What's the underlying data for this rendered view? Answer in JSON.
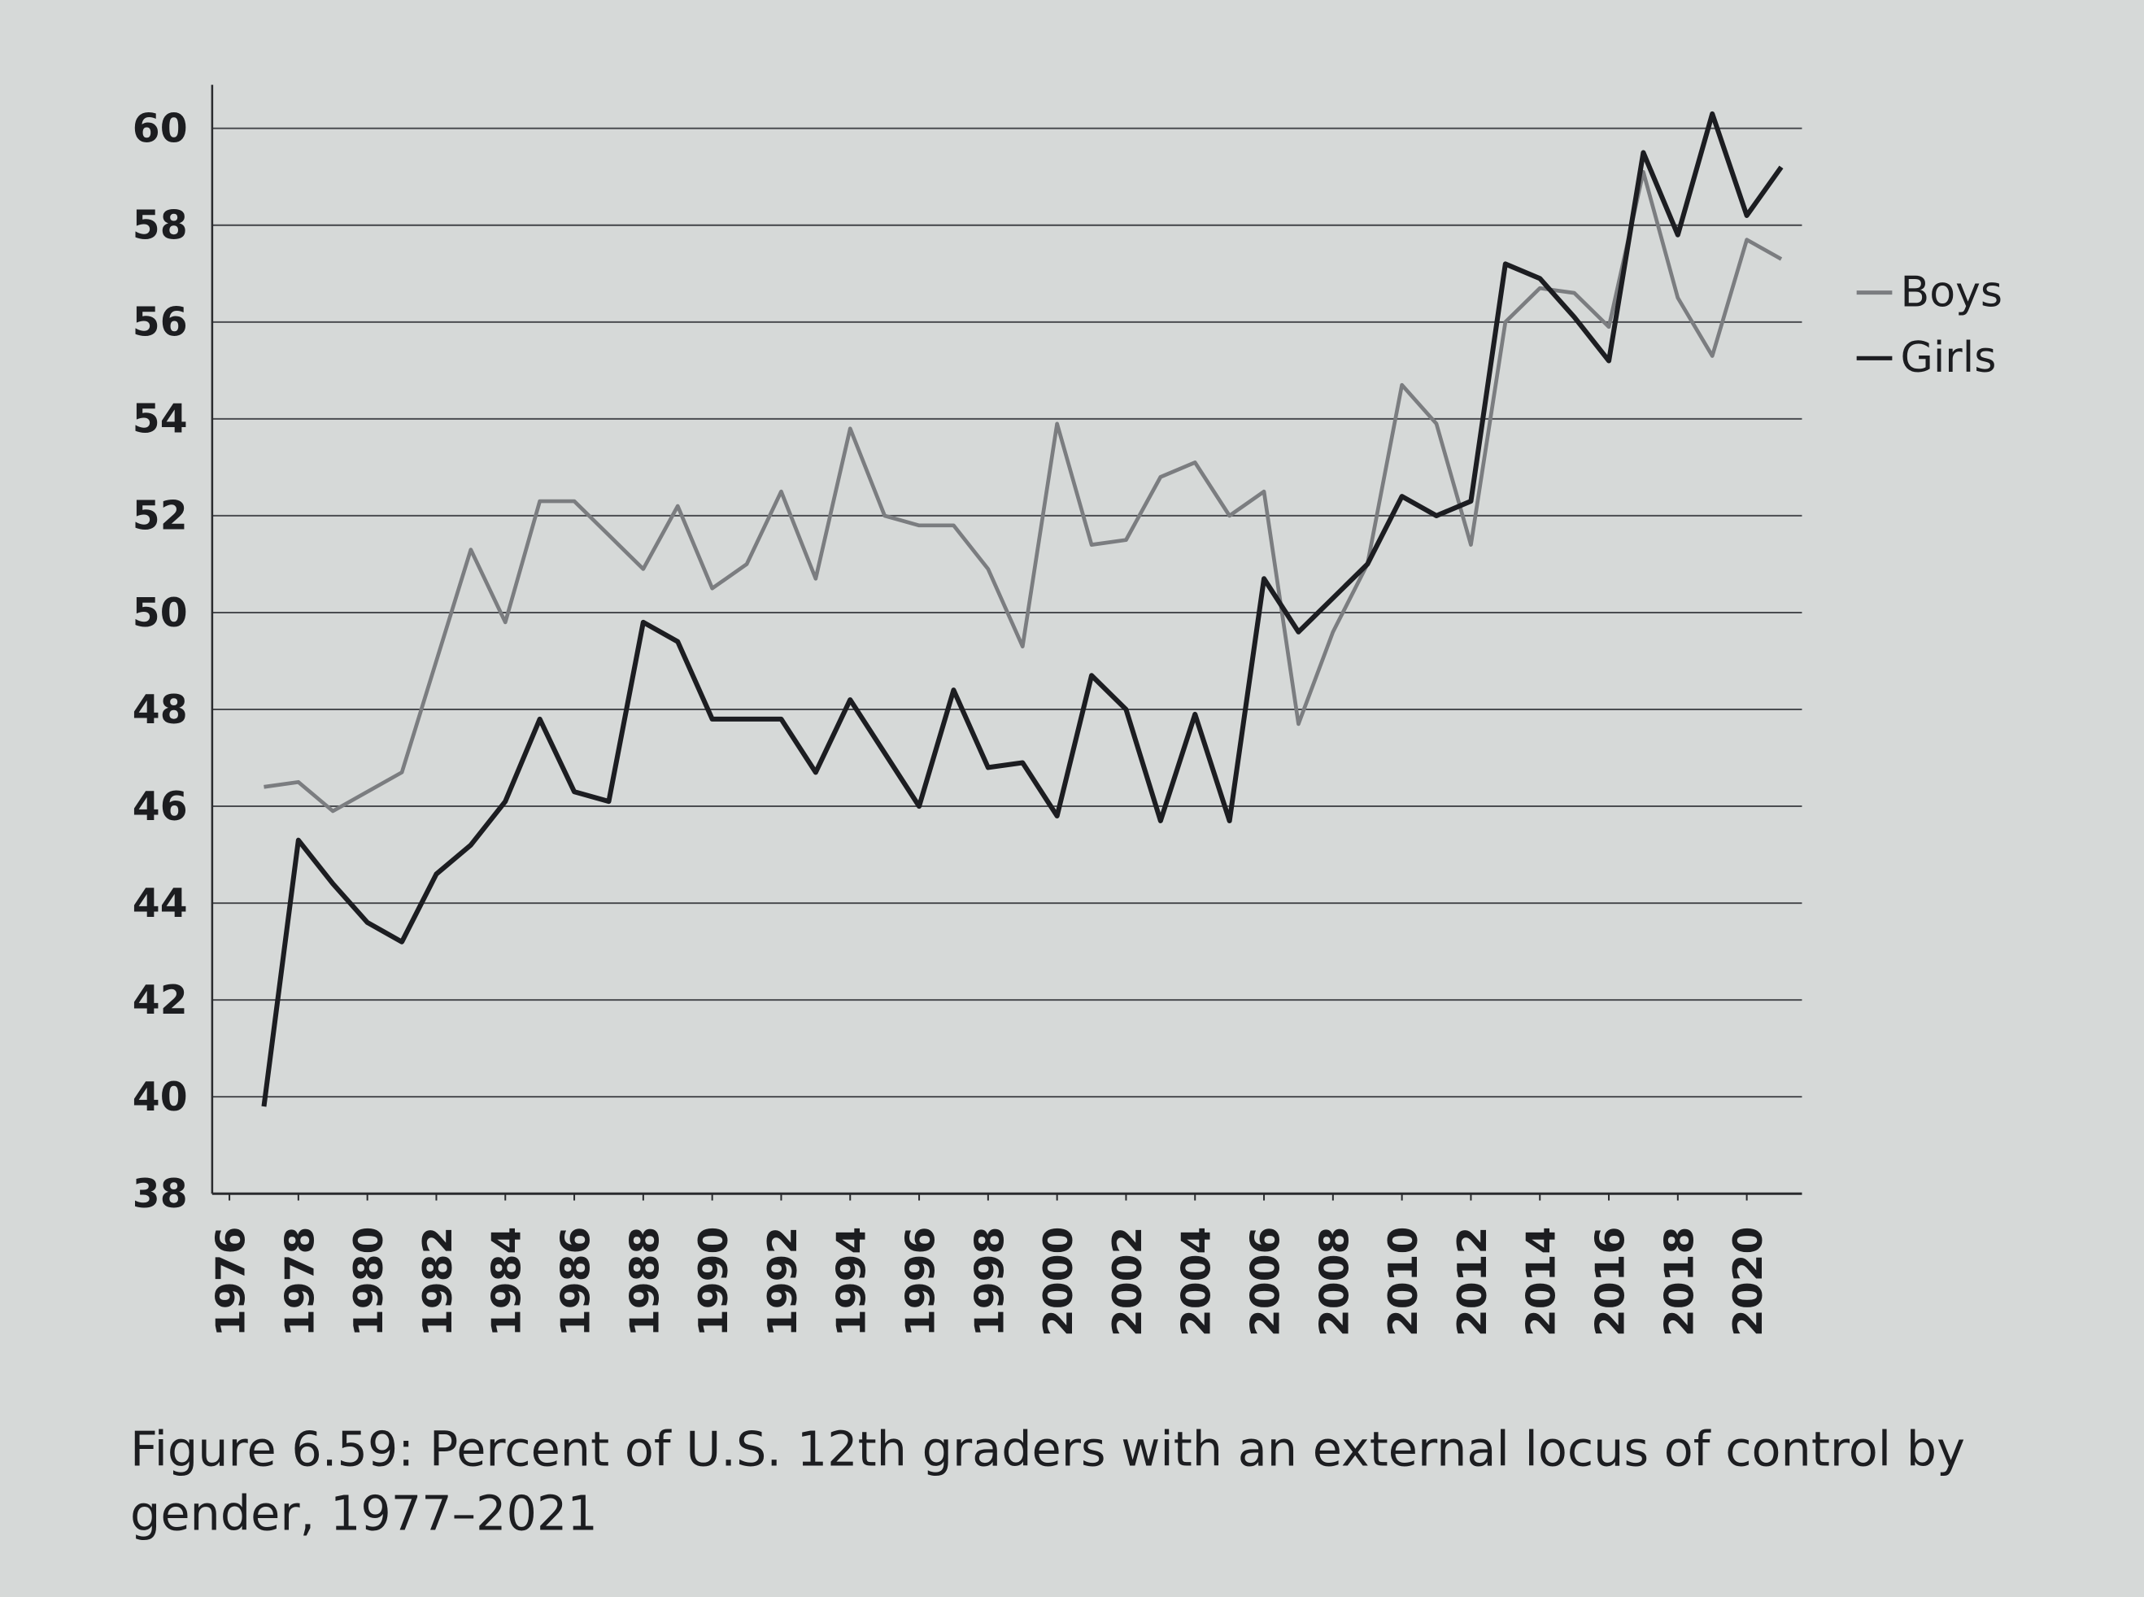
{
  "chart_data": {
    "type": "line",
    "caption": "Figure 6.59: Percent of U.S. 12th graders with an external locus of control by gender, 1977–2021",
    "x": [
      1977,
      1978,
      1979,
      1980,
      1981,
      1982,
      1983,
      1984,
      1985,
      1986,
      1987,
      1988,
      1989,
      1990,
      1991,
      1992,
      1993,
      1994,
      1995,
      1996,
      1997,
      1998,
      1999,
      2000,
      2001,
      2002,
      2003,
      2004,
      2005,
      2006,
      2007,
      2008,
      2009,
      2010,
      2011,
      2012,
      2013,
      2014,
      2015,
      2016,
      2017,
      2018,
      2019,
      2020,
      2021
    ],
    "series": [
      {
        "name": "Boys",
        "color": "#7b7d80",
        "values": [
          46.4,
          46.5,
          45.9,
          46.3,
          46.7,
          49.0,
          51.3,
          49.8,
          52.3,
          52.3,
          51.6,
          50.9,
          52.2,
          50.5,
          51.0,
          52.5,
          50.7,
          53.8,
          52.0,
          51.8,
          51.8,
          50.9,
          49.3,
          53.9,
          51.4,
          51.5,
          52.8,
          53.1,
          52.0,
          52.5,
          47.7,
          49.6,
          51.0,
          54.7,
          53.9,
          51.4,
          56.0,
          56.7,
          56.6,
          55.9,
          59.1,
          56.5,
          55.3,
          57.7,
          57.3
        ]
      },
      {
        "name": "Girls",
        "color": "#1c1d21",
        "values": [
          39.8,
          45.3,
          44.4,
          43.6,
          43.2,
          44.6,
          45.2,
          46.1,
          47.8,
          46.3,
          46.1,
          49.8,
          49.4,
          47.8,
          47.8,
          47.8,
          46.7,
          48.2,
          47.1,
          46.0,
          48.4,
          46.8,
          46.9,
          45.8,
          48.7,
          48.0,
          45.7,
          47.9,
          45.7,
          50.7,
          49.6,
          50.3,
          51.0,
          52.4,
          52.0,
          52.3,
          57.2,
          56.9,
          56.1,
          55.2,
          59.5,
          57.8,
          60.3,
          58.2,
          59.2
        ]
      }
    ],
    "xlim": [
      1975.5,
      2021.6
    ],
    "xticks": [
      1976,
      1978,
      1980,
      1982,
      1984,
      1986,
      1988,
      1990,
      1992,
      1994,
      1996,
      1998,
      2000,
      2002,
      2004,
      2006,
      2008,
      2010,
      2012,
      2014,
      2016,
      2018,
      2020
    ],
    "ylim": [
      38,
      60.9
    ],
    "yticks": [
      38,
      40,
      42,
      44,
      46,
      48,
      50,
      52,
      54,
      56,
      58,
      60
    ],
    "grid": true,
    "legend_position": "right"
  }
}
